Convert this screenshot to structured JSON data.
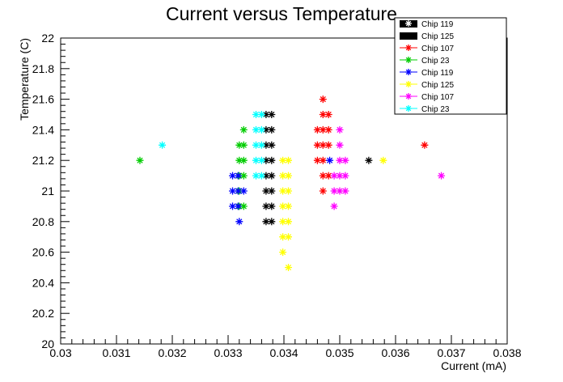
{
  "chart_data": {
    "type": "scatter",
    "title": "Current versus Temperature",
    "xlabel": "Current (mA)",
    "ylabel": "Temperature (C)",
    "xlim": [
      0.03,
      0.038
    ],
    "ylim": [
      20,
      22
    ],
    "x_ticks": [
      "0.03",
      "0.031",
      "0.032",
      "0.033",
      "0.034",
      "0.035",
      "0.036",
      "0.037",
      "0.038"
    ],
    "y_ticks": [
      "20",
      "20.2",
      "20.4",
      "20.6",
      "20.8",
      "21",
      "21.2",
      "21.4",
      "21.6",
      "21.8",
      "22"
    ],
    "legend_position": "top-right",
    "legend": [
      {
        "label": "Chip 119",
        "color": "#000000",
        "style": "white-marker-on-black"
      },
      {
        "label": "Chip 125",
        "color": "#000000",
        "style": "filled-black"
      },
      {
        "label": "Chip 107",
        "color": "#ff0000",
        "style": "marker"
      },
      {
        "label": "Chip 23",
        "color": "#00cc00",
        "style": "marker"
      },
      {
        "label": "Chip 119",
        "color": "#0000ff",
        "style": "marker"
      },
      {
        "label": "Chip 125",
        "color": "#ffff00",
        "style": "marker"
      },
      {
        "label": "Chip 107",
        "color": "#ff00ff",
        "style": "marker"
      },
      {
        "label": "Chip 23",
        "color": "#00ffff",
        "style": "marker"
      }
    ],
    "series": [
      {
        "color": "#000000",
        "points": [
          [
            0.03368,
            21.5
          ],
          [
            0.03378,
            21.5
          ],
          [
            0.03368,
            21.4
          ],
          [
            0.03378,
            21.4
          ],
          [
            0.03368,
            21.3
          ],
          [
            0.03378,
            21.3
          ],
          [
            0.03368,
            21.2
          ],
          [
            0.03378,
            21.2
          ],
          [
            0.03368,
            21.1
          ],
          [
            0.03378,
            21.1
          ],
          [
            0.03368,
            21.0
          ],
          [
            0.03378,
            21.0
          ],
          [
            0.03368,
            20.9
          ],
          [
            0.03378,
            20.9
          ],
          [
            0.03368,
            20.8
          ],
          [
            0.03378,
            20.8
          ],
          [
            0.03552,
            21.2
          ]
        ]
      },
      {
        "color": "#ffff00",
        "points": [
          [
            0.03398,
            21.2
          ],
          [
            0.03408,
            21.2
          ],
          [
            0.03398,
            21.1
          ],
          [
            0.03408,
            21.1
          ],
          [
            0.03398,
            21.0
          ],
          [
            0.03408,
            21.0
          ],
          [
            0.03398,
            20.9
          ],
          [
            0.03408,
            20.9
          ],
          [
            0.03398,
            20.8
          ],
          [
            0.03408,
            20.8
          ],
          [
            0.03398,
            20.7
          ],
          [
            0.03408,
            20.7
          ],
          [
            0.03398,
            20.6
          ],
          [
            0.03408,
            20.5
          ],
          [
            0.03578,
            21.2
          ]
        ]
      },
      {
        "color": "#ff0000",
        "points": [
          [
            0.0347,
            21.6
          ],
          [
            0.0347,
            21.5
          ],
          [
            0.0348,
            21.5
          ],
          [
            0.0346,
            21.4
          ],
          [
            0.0347,
            21.4
          ],
          [
            0.0348,
            21.4
          ],
          [
            0.0346,
            21.3
          ],
          [
            0.0347,
            21.3
          ],
          [
            0.0348,
            21.3
          ],
          [
            0.0346,
            21.2
          ],
          [
            0.0347,
            21.2
          ],
          [
            0.0347,
            21.1
          ],
          [
            0.0348,
            21.1
          ],
          [
            0.0347,
            21.0
          ],
          [
            0.03652,
            21.3
          ]
        ]
      },
      {
        "color": "#00cc00",
        "points": [
          [
            0.03142,
            21.2
          ],
          [
            0.03328,
            21.4
          ],
          [
            0.0332,
            21.3
          ],
          [
            0.03328,
            21.3
          ],
          [
            0.0332,
            21.2
          ],
          [
            0.03328,
            21.2
          ],
          [
            0.0332,
            21.1
          ],
          [
            0.03328,
            21.1
          ],
          [
            0.0332,
            21.0
          ],
          [
            0.0332,
            20.9
          ],
          [
            0.03328,
            20.9
          ]
        ]
      },
      {
        "color": "#0000ff",
        "points": [
          [
            0.03308,
            21.1
          ],
          [
            0.03318,
            21.1
          ],
          [
            0.03308,
            21.0
          ],
          [
            0.03318,
            21.0
          ],
          [
            0.03328,
            21.0
          ],
          [
            0.03308,
            20.9
          ],
          [
            0.03318,
            20.9
          ],
          [
            0.0332,
            20.8
          ],
          [
            0.03482,
            21.2
          ]
        ]
      },
      {
        "color": "#ff00ff",
        "points": [
          [
            0.035,
            21.4
          ],
          [
            0.035,
            21.3
          ],
          [
            0.035,
            21.2
          ],
          [
            0.0351,
            21.2
          ],
          [
            0.0349,
            21.1
          ],
          [
            0.035,
            21.1
          ],
          [
            0.0351,
            21.1
          ],
          [
            0.0349,
            21.0
          ],
          [
            0.035,
            21.0
          ],
          [
            0.0351,
            21.0
          ],
          [
            0.0349,
            20.9
          ],
          [
            0.03682,
            21.1
          ]
        ]
      },
      {
        "color": "#00ffff",
        "points": [
          [
            0.03182,
            21.3
          ],
          [
            0.0335,
            21.5
          ],
          [
            0.0336,
            21.5
          ],
          [
            0.0335,
            21.4
          ],
          [
            0.0336,
            21.4
          ],
          [
            0.0335,
            21.3
          ],
          [
            0.0336,
            21.3
          ],
          [
            0.0335,
            21.2
          ],
          [
            0.0336,
            21.2
          ],
          [
            0.0335,
            21.1
          ],
          [
            0.0336,
            21.1
          ]
        ]
      }
    ]
  }
}
